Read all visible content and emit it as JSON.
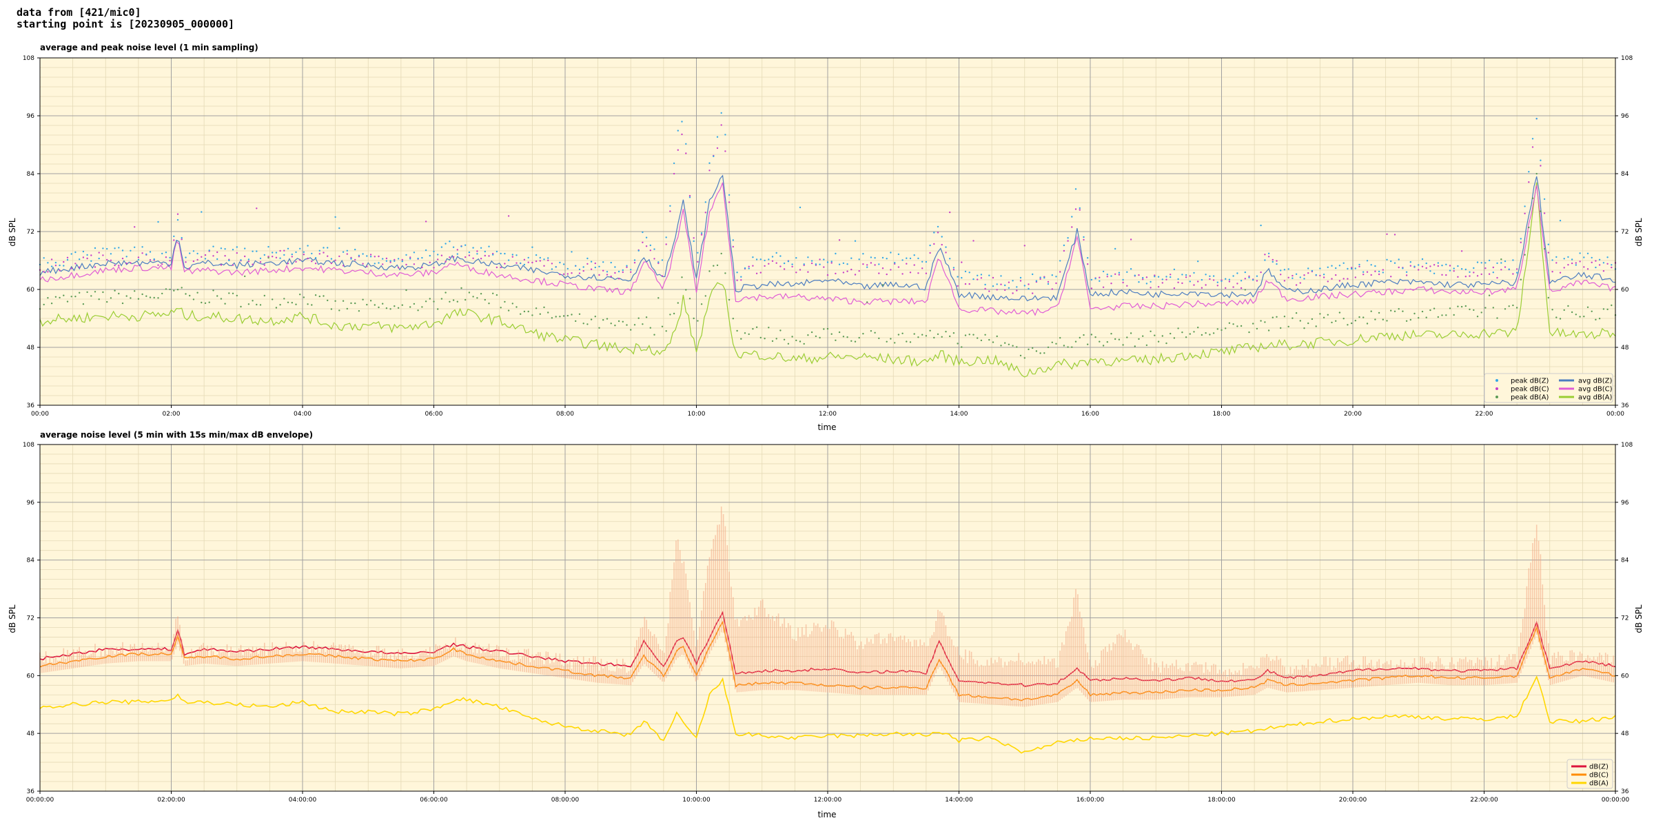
{
  "header": {
    "line1": "data from [421/mic0]",
    "line2": "starting point is [20230905_000000]"
  },
  "colors": {
    "background": "#fff6da",
    "grid_major": "#a0a0a0",
    "grid_minor": "#e4d9b6",
    "dBZ_top": "#4b7cc0",
    "dBC_top": "#e05cd5",
    "dBA_top": "#9acd32",
    "peakZ": "#33a7e6",
    "peakC": "#c83fc8",
    "peakA": "#5c9b55",
    "dBZ_bottom": "#dc143c",
    "dBC_bottom": "#ff8c00",
    "dBA_bottom": "#ffd700",
    "envelope": "#f4a582"
  },
  "chart_data": [
    {
      "type": "line",
      "title": "average and peak noise level (1 min sampling)",
      "xlabel": "time",
      "ylabel": "dB SPL",
      "ylim": [
        36,
        108
      ],
      "xlim_hours": [
        0,
        24
      ],
      "yticks": [
        "36",
        "48",
        "60",
        "72",
        "84",
        "96",
        "108"
      ],
      "xticks": [
        "00:00",
        "02:00",
        "04:00",
        "06:00",
        "08:00",
        "10:00",
        "12:00",
        "14:00",
        "16:00",
        "18:00",
        "20:00",
        "22:00",
        "00:00"
      ],
      "grid": true,
      "legend_position": "lower-right",
      "legend": [
        "peak dB(Z)",
        "peak dB(C)",
        "peak dB(A)",
        "avg dB(Z)",
        "avg dB(C)",
        "avg dB(A)"
      ],
      "x_hours": [
        0,
        0.5,
        1,
        1.5,
        2,
        2.1,
        2.2,
        2.5,
        3,
        3.5,
        4,
        4.5,
        5,
        5.5,
        6,
        6.3,
        6.5,
        7,
        7.5,
        8,
        8.5,
        9,
        9.2,
        9.5,
        9.7,
        9.8,
        10,
        10.2,
        10.4,
        10.6,
        11,
        11.5,
        12,
        12.5,
        13,
        13.5,
        13.7,
        14,
        14.5,
        15,
        15.5,
        15.8,
        16,
        16.5,
        17,
        17.5,
        18,
        18.5,
        18.7,
        19,
        19.5,
        20,
        20.5,
        21,
        21.5,
        22,
        22.5,
        22.8,
        23,
        23.5,
        24
      ],
      "series": [
        {
          "name": "avg dB(Z)",
          "values": [
            63.5,
            64.5,
            65.5,
            65.5,
            65.5,
            72,
            64.5,
            65.5,
            65,
            65.5,
            66,
            65.5,
            65,
            64.5,
            65,
            66.5,
            66,
            65,
            64,
            63,
            62.5,
            62,
            67,
            62,
            72,
            78,
            62,
            78,
            84,
            60,
            61,
            61,
            62,
            60.5,
            61,
            60.5,
            69,
            59,
            58.5,
            58,
            58.5,
            72,
            59,
            59.5,
            59,
            59.5,
            59,
            59,
            64,
            59.5,
            60,
            61,
            61.5,
            61.5,
            61,
            61,
            61.5,
            84,
            61.5,
            63,
            62
          ]
        },
        {
          "name": "avg dB(C)",
          "values": [
            62,
            63,
            64,
            64.5,
            64.5,
            71,
            63.5,
            64,
            63.5,
            64,
            64.5,
            64,
            63.5,
            63,
            63.5,
            65.5,
            64.5,
            63,
            62,
            61,
            60,
            59.5,
            66,
            60,
            70,
            76,
            59.5,
            76,
            82,
            58,
            58.5,
            58.5,
            58,
            57.5,
            57.5,
            57.5,
            67,
            56,
            55.5,
            55,
            56,
            71,
            56,
            56.5,
            56.5,
            57,
            57,
            57.5,
            62,
            58,
            58.5,
            59,
            59.5,
            60,
            59.5,
            59.5,
            60,
            82,
            59.5,
            61.5,
            60
          ]
        },
        {
          "name": "avg dB(A)",
          "values": [
            53.5,
            54,
            54.5,
            54.5,
            55,
            56,
            54.5,
            54.5,
            54,
            53.5,
            54.5,
            52.5,
            52.5,
            52,
            53,
            55,
            55,
            53.5,
            51,
            49.5,
            48.5,
            47.5,
            48.5,
            46.5,
            52,
            58,
            47,
            58,
            62,
            46.5,
            46.5,
            45.5,
            46,
            46,
            45.5,
            45,
            46.5,
            45,
            45.5,
            42.5,
            44.5,
            44.5,
            45.5,
            45,
            45.5,
            46.5,
            47,
            48,
            48.5,
            48.5,
            49,
            49.5,
            50.5,
            50.5,
            50.5,
            51,
            51,
            82,
            51,
            50.5,
            51
          ]
        },
        {
          "name": "peak dB(Z)",
          "values": [
            65,
            66,
            67,
            67,
            67,
            75,
            66,
            67,
            67,
            67,
            67.5,
            67,
            66.5,
            66,
            66.5,
            68.5,
            68,
            66.5,
            65.5,
            65,
            64.5,
            64,
            71,
            64,
            90,
            95,
            64,
            85,
            97,
            63,
            66,
            66,
            66,
            65.5,
            66,
            65.5,
            73,
            62,
            61.5,
            61,
            62,
            80,
            62,
            62.5,
            62,
            62.5,
            62,
            62,
            68,
            62.5,
            63,
            64,
            64.5,
            64.5,
            64,
            64,
            64.5,
            96,
            64.5,
            66,
            65
          ]
        },
        {
          "name": "peak dB(C)",
          "values": [
            64,
            65,
            66,
            66,
            66,
            74,
            65,
            66,
            66,
            66,
            66.5,
            66,
            65.5,
            65,
            65.5,
            67.5,
            67,
            65.5,
            64.5,
            64,
            63.5,
            63,
            70,
            63,
            88,
            93,
            63,
            83,
            95,
            62,
            64,
            64,
            64,
            63.5,
            64,
            63.5,
            71,
            61,
            60.5,
            60,
            61,
            78,
            61,
            61.5,
            61,
            61.5,
            61,
            61,
            67,
            61.5,
            62,
            63,
            63.5,
            63.5,
            63,
            63,
            63.5,
            94,
            63.5,
            65,
            64
          ]
        },
        {
          "name": "peak dB(A)",
          "values": [
            57,
            57.5,
            58,
            58,
            58.5,
            59.5,
            58,
            58,
            57.5,
            57,
            58,
            56,
            56,
            55.5,
            56.5,
            58.5,
            58.5,
            57,
            55,
            53.5,
            52.5,
            51.5,
            53,
            50.5,
            57,
            63,
            51,
            63,
            67,
            50.5,
            50.5,
            49.5,
            50,
            50,
            49.5,
            49,
            51,
            49,
            49.5,
            46.5,
            48.5,
            48.5,
            49.5,
            49,
            49.5,
            50.5,
            51,
            52,
            52.5,
            52.5,
            53,
            53.5,
            54.5,
            54.5,
            54.5,
            55,
            55,
            85,
            55,
            54.5,
            55
          ]
        }
      ]
    },
    {
      "type": "line",
      "title": "average noise level (5 min with 15s min/max dB envelope)",
      "xlabel": "time",
      "ylabel": "dB SPL",
      "ylim": [
        36,
        108
      ],
      "xlim_hours": [
        0,
        24
      ],
      "yticks": [
        "36",
        "48",
        "60",
        "72",
        "84",
        "96",
        "108"
      ],
      "xticks": [
        "00:00:00",
        "02:00:00",
        "04:00:00",
        "06:00:00",
        "08:00:00",
        "10:00:00",
        "12:00:00",
        "14:00:00",
        "16:00:00",
        "18:00:00",
        "20:00:00",
        "22:00:00",
        "00:00:00"
      ],
      "grid": true,
      "legend_position": "lower-right",
      "legend": [
        "dB(Z)",
        "dB(C)",
        "dB(A)"
      ],
      "x_hours": [
        0,
        0.5,
        1,
        1.5,
        2,
        2.1,
        2.2,
        2.5,
        3,
        3.5,
        4,
        4.5,
        5,
        5.5,
        6,
        6.3,
        6.5,
        7,
        7.5,
        8,
        8.5,
        9,
        9.2,
        9.5,
        9.7,
        9.8,
        10,
        10.2,
        10.4,
        10.6,
        11,
        11.5,
        12,
        12.5,
        13,
        13.5,
        13.7,
        14,
        14.5,
        15,
        15.5,
        15.8,
        16,
        16.5,
        17,
        17.5,
        18,
        18.5,
        18.7,
        19,
        19.5,
        20,
        20.5,
        21,
        21.5,
        22,
        22.5,
        22.8,
        23,
        23.5,
        24
      ],
      "series": [
        {
          "name": "dB(Z)",
          "values": [
            63.5,
            64.5,
            65.5,
            65.5,
            65.5,
            69.5,
            64.5,
            65.5,
            65,
            65.5,
            66,
            65.5,
            65,
            64.5,
            65,
            66.5,
            66,
            65,
            64,
            63,
            62.5,
            62,
            67,
            62,
            67,
            68,
            62.5,
            68,
            73,
            60.5,
            61,
            61,
            61.5,
            60.5,
            61,
            60.5,
            67,
            59,
            58.5,
            58,
            58.5,
            61.5,
            59,
            59.5,
            59,
            59.5,
            59,
            59,
            61,
            59.5,
            60,
            61,
            61.5,
            61.5,
            61,
            61,
            61.5,
            71,
            61.5,
            63,
            62
          ]
        },
        {
          "name": "dB(C)",
          "values": [
            62,
            63,
            64,
            64.5,
            64.5,
            68,
            63.5,
            64,
            63.5,
            64,
            64.5,
            64,
            63.5,
            63,
            63.5,
            65.5,
            64.5,
            63,
            62,
            61,
            60,
            59.5,
            64,
            60,
            65,
            66,
            60,
            66,
            71,
            58,
            58.5,
            58.5,
            58,
            57.5,
            57.5,
            57.5,
            63.5,
            56,
            55.5,
            55,
            56,
            59,
            56,
            56.5,
            56.5,
            57,
            57,
            57.5,
            59,
            58,
            58.5,
            59,
            59.5,
            60,
            59.5,
            59.5,
            60,
            70,
            59.5,
            61.5,
            60
          ]
        },
        {
          "name": "dB(A)",
          "values": [
            53.5,
            54,
            54.5,
            54.5,
            55,
            56,
            54.5,
            54.5,
            54,
            53.5,
            54.5,
            52.5,
            52.5,
            52,
            53,
            55,
            55,
            53.5,
            51,
            49.5,
            48.5,
            47.5,
            50.5,
            46.5,
            52,
            50,
            47,
            56,
            59,
            48,
            47.5,
            47,
            47.5,
            47.5,
            48,
            47.5,
            48.5,
            46.5,
            47,
            44,
            46,
            46.5,
            47,
            47,
            47,
            47.5,
            48,
            48.5,
            49,
            49.5,
            50.5,
            51,
            51.5,
            51.5,
            51,
            51,
            51.5,
            60,
            50.5,
            50.5,
            51.5
          ]
        },
        {
          "name": "envelope",
          "values": [
            65,
            66,
            67,
            67,
            67,
            74,
            66,
            67,
            66.5,
            67,
            67.5,
            67,
            66.5,
            66,
            66.5,
            68,
            67.5,
            66.5,
            65.5,
            64.5,
            64,
            63.5,
            74,
            65,
            90,
            85,
            68,
            86,
            97,
            72,
            76,
            70,
            72,
            68,
            70,
            67,
            75,
            66,
            64,
            65,
            64,
            79,
            63,
            70,
            63,
            64,
            62,
            63,
            66,
            63,
            64,
            64.5,
            64,
            64,
            64,
            64,
            65,
            94,
            65,
            66,
            65
          ]
        }
      ]
    }
  ]
}
